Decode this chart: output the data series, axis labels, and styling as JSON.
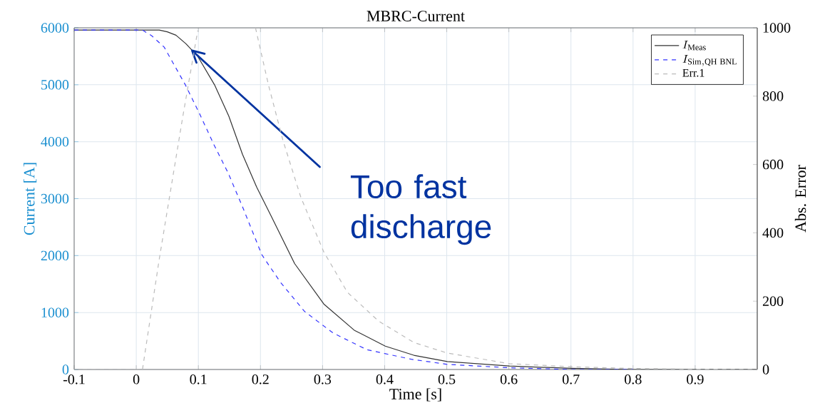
{
  "chart_data": {
    "type": "line",
    "title": "MBRC-Current",
    "xlabel": "Time [s]",
    "ylabel": "Current [A]",
    "y2label": "Abs. Error",
    "xlim": [
      -0.1,
      1.0
    ],
    "xticks": [
      -0.1,
      0,
      0.1,
      0.2,
      0.3,
      0.4,
      0.5,
      0.6,
      0.7,
      0.8,
      0.9
    ],
    "ylim": [
      0,
      6000
    ],
    "yticks": [
      0,
      1000,
      2000,
      3000,
      4000,
      5000,
      6000
    ],
    "y2lim": [
      0,
      1000
    ],
    "y2ticks": [
      0,
      200,
      400,
      600,
      800,
      1000
    ],
    "grid": true,
    "legend": "top right",
    "series": [
      {
        "name": "I_{\\mathrm{Meas}}",
        "color": "#333333",
        "line_style": "solid",
        "x": [
          -0.1,
          0.0,
          0.037,
          0.05,
          0.064,
          0.08,
          0.099,
          0.126,
          0.149,
          0.171,
          0.194,
          0.217,
          0.255,
          0.302,
          0.351,
          0.401,
          0.447,
          0.501,
          0.601,
          0.701,
          0.8,
          0.9,
          1.0
        ],
        "values": [
          5960,
          5960,
          5960,
          5930,
          5870,
          5720,
          5500,
          5000,
          4450,
          3780,
          3200,
          2700,
          1860,
          1150,
          690,
          410,
          250,
          140,
          60,
          20,
          0,
          0,
          0
        ]
      },
      {
        "name": "I_{\\mathrm{Sim,QH\\ BNL}}",
        "color": "#3333ff",
        "line_style": "dashed",
        "x": [
          -0.1,
          0.0,
          0.01,
          0.025,
          0.045,
          0.079,
          0.102,
          0.125,
          0.148,
          0.171,
          0.202,
          0.213,
          0.233,
          0.271,
          0.317,
          0.371,
          0.4,
          0.443,
          0.501,
          0.601,
          0.701,
          0.8
        ],
        "values": [
          5960,
          5960,
          5960,
          5860,
          5660,
          5000,
          4490,
          3950,
          3450,
          2860,
          2020,
          1840,
          1520,
          1020,
          640,
          350,
          280,
          180,
          90,
          30,
          0,
          0
        ]
      },
      {
        "name": "Err.1",
        "color": "#bbbbbb",
        "line_style": "dashed",
        "axis": "y2",
        "x": [
          -0.1,
          0.0,
          0.01,
          0.037,
          0.056,
          0.075,
          0.099,
          0.15,
          0.192,
          0.213,
          0.236,
          0.265,
          0.302,
          0.34,
          0.39,
          0.447,
          0.501,
          0.601,
          0.701,
          0.8,
          0.9,
          1.0
        ],
        "values": [
          0,
          0,
          0,
          323,
          532,
          741,
          992,
          null,
          1000,
          832,
          672,
          504,
          344,
          226,
          142,
          79,
          48,
          17,
          8,
          3,
          1,
          0
        ]
      }
    ],
    "annotations": [
      {
        "text": "Too fast discharge",
        "x": 0.09,
        "y": 5600
      }
    ]
  }
}
